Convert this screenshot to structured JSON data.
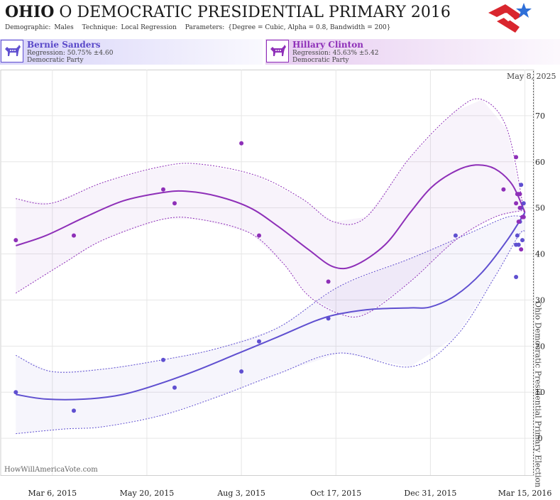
{
  "header": {
    "title_state": "OHIO",
    "title_rest": "O DEMOCRATIC PRESIDENTIAL PRIMARY 2016",
    "params": [
      {
        "label": "Demographic:",
        "value": "Males"
      },
      {
        "label": "Technique:",
        "value": "Local Regression"
      },
      {
        "label": "Parameters:",
        "value": "{Degree = Cubic, Alpha = 0.8, Bandwidth = 200}"
      }
    ],
    "logo_icon": "star-flag-logo-icon"
  },
  "candidates": [
    {
      "name": "Bernie Sanders",
      "regression": "Regression: 50.75% ±4.60",
      "party": "Democratic Party",
      "color": "#5f4fd0",
      "icon": "donkey-icon"
    },
    {
      "name": "Hillary Clinton",
      "regression": "Regression: 45.63% ±5.42",
      "party": "Democratic Party",
      "color": "#8e2fb8",
      "icon": "donkey-icon"
    }
  ],
  "chart_data": {
    "type": "scatter",
    "x_axis": {
      "type": "date",
      "ticks": [
        "Mar 6, 2015",
        "May 20, 2015",
        "Aug 3, 2015",
        "Oct 17, 2015",
        "Dec 31, 2015",
        "Mar 15, 2016"
      ],
      "range": [
        "2015-01-24",
        "2016-03-22"
      ]
    },
    "y_axis": {
      "range": [
        -8,
        80
      ],
      "ticks": [
        0,
        10,
        20,
        30,
        40,
        50,
        60,
        70
      ],
      "position": "right"
    },
    "grid": true,
    "today_label": "May 8, 2025",
    "event_line": {
      "date": "2016-03-15",
      "label": "Ohio Democratic Presidential Primary Election"
    },
    "watermark": "HowWillAmericaVote.com",
    "series": [
      {
        "name": "Bernie Sanders",
        "color": "#5f4fd0",
        "points": [
          [
            "2015-02-05",
            10
          ],
          [
            "2015-03-23",
            6
          ],
          [
            "2015-06-02",
            17
          ],
          [
            "2015-06-11",
            11
          ],
          [
            "2015-08-03",
            14.5
          ],
          [
            "2015-08-17",
            21
          ],
          [
            "2015-10-11",
            26
          ],
          [
            "2016-01-20",
            44
          ],
          [
            "2016-03-08",
            42
          ],
          [
            "2016-03-08",
            35
          ],
          [
            "2016-03-09",
            44
          ],
          [
            "2016-03-10",
            42
          ],
          [
            "2016-03-10",
            53
          ],
          [
            "2016-03-11",
            47
          ],
          [
            "2016-03-12",
            55
          ],
          [
            "2016-03-14",
            51
          ],
          [
            "2016-03-13",
            43
          ],
          [
            "2016-03-12",
            50
          ]
        ],
        "trend": [
          [
            "2015-02-05",
            9.5
          ],
          [
            "2015-03-01",
            8.5
          ],
          [
            "2015-04-01",
            8.5
          ],
          [
            "2015-05-01",
            9.5
          ],
          [
            "2015-06-01",
            12
          ],
          [
            "2015-07-01",
            15
          ],
          [
            "2015-08-01",
            18.5
          ],
          [
            "2015-09-01",
            22
          ],
          [
            "2015-10-01",
            25.5
          ],
          [
            "2015-10-20",
            27
          ],
          [
            "2015-11-15",
            28
          ],
          [
            "2015-12-15",
            28.3
          ],
          [
            "2015-12-31",
            28.5
          ],
          [
            "2016-01-20",
            31
          ],
          [
            "2016-02-10",
            36
          ],
          [
            "2016-03-01",
            43
          ],
          [
            "2016-03-15",
            49
          ]
        ],
        "band_upper": [
          [
            "2015-02-05",
            18
          ],
          [
            "2015-03-05",
            14.5
          ],
          [
            "2015-04-15",
            15
          ],
          [
            "2015-06-01",
            17
          ],
          [
            "2015-07-15",
            19.5
          ],
          [
            "2015-09-01",
            24
          ],
          [
            "2015-10-20",
            33
          ],
          [
            "2015-12-15",
            39
          ],
          [
            "2016-01-31",
            44.5
          ],
          [
            "2016-03-01",
            48
          ],
          [
            "2016-03-15",
            48
          ]
        ],
        "band_lower": [
          [
            "2015-02-05",
            1
          ],
          [
            "2015-03-15",
            2
          ],
          [
            "2015-04-15",
            2.5
          ],
          [
            "2015-06-01",
            5
          ],
          [
            "2015-07-15",
            9
          ],
          [
            "2015-09-01",
            14
          ],
          [
            "2015-10-20",
            18.5
          ],
          [
            "2015-12-15",
            15.5
          ],
          [
            "2016-01-20",
            22
          ],
          [
            "2016-02-20",
            35
          ],
          [
            "2016-03-10",
            44
          ],
          [
            "2016-03-15",
            45
          ]
        ]
      },
      {
        "name": "Hillary Clinton",
        "color": "#8e2fb8",
        "points": [
          [
            "2015-02-05",
            43
          ],
          [
            "2015-03-23",
            44
          ],
          [
            "2015-06-02",
            54
          ],
          [
            "2015-06-11",
            51
          ],
          [
            "2015-08-03",
            64
          ],
          [
            "2015-08-17",
            44
          ],
          [
            "2015-10-11",
            34
          ],
          [
            "2016-02-27",
            54
          ],
          [
            "2016-03-08",
            61
          ],
          [
            "2016-03-08",
            51
          ],
          [
            "2016-03-09",
            53
          ],
          [
            "2016-03-10",
            47
          ],
          [
            "2016-03-11",
            53
          ],
          [
            "2016-03-11",
            50
          ],
          [
            "2016-03-12",
            41
          ],
          [
            "2016-03-13",
            48
          ],
          [
            "2016-03-14",
            48
          ]
        ],
        "trend": [
          [
            "2015-02-05",
            41.8
          ],
          [
            "2015-03-01",
            44
          ],
          [
            "2015-04-01",
            48
          ],
          [
            "2015-05-01",
            51.5
          ],
          [
            "2015-06-01",
            53.3
          ],
          [
            "2015-06-20",
            53.6
          ],
          [
            "2015-07-15",
            52.5
          ],
          [
            "2015-08-10",
            50
          ],
          [
            "2015-09-01",
            46
          ],
          [
            "2015-09-25",
            41
          ],
          [
            "2015-10-15",
            37.2
          ],
          [
            "2015-11-01",
            37.5
          ],
          [
            "2015-11-25",
            42
          ],
          [
            "2015-12-15",
            49
          ],
          [
            "2016-01-01",
            54.5
          ],
          [
            "2016-01-20",
            58
          ],
          [
            "2016-02-05",
            59.3
          ],
          [
            "2016-02-20",
            58.5
          ],
          [
            "2016-03-05",
            55
          ],
          [
            "2016-03-15",
            49
          ]
        ],
        "band_upper": [
          [
            "2015-02-05",
            52
          ],
          [
            "2015-03-05",
            51
          ],
          [
            "2015-04-15",
            55.5
          ],
          [
            "2015-06-01",
            59
          ],
          [
            "2015-07-01",
            59.5
          ],
          [
            "2015-08-15",
            57
          ],
          [
            "2015-09-20",
            52
          ],
          [
            "2015-10-15",
            47
          ],
          [
            "2015-11-10",
            48
          ],
          [
            "2015-12-15",
            61
          ],
          [
            "2016-01-20",
            71
          ],
          [
            "2016-02-10",
            73.5
          ],
          [
            "2016-03-01",
            67
          ],
          [
            "2016-03-15",
            48
          ]
        ],
        "band_lower": [
          [
            "2015-02-05",
            31.5
          ],
          [
            "2015-03-15",
            38
          ],
          [
            "2015-04-15",
            43
          ],
          [
            "2015-06-01",
            47.5
          ],
          [
            "2015-07-01",
            47.5
          ],
          [
            "2015-08-10",
            44.5
          ],
          [
            "2015-09-05",
            38
          ],
          [
            "2015-09-25",
            31
          ],
          [
            "2015-10-20",
            27
          ],
          [
            "2015-11-10",
            27
          ],
          [
            "2015-12-15",
            34
          ],
          [
            "2016-01-20",
            43
          ],
          [
            "2016-02-20",
            48
          ],
          [
            "2016-03-15",
            49.5
          ]
        ]
      }
    ]
  }
}
